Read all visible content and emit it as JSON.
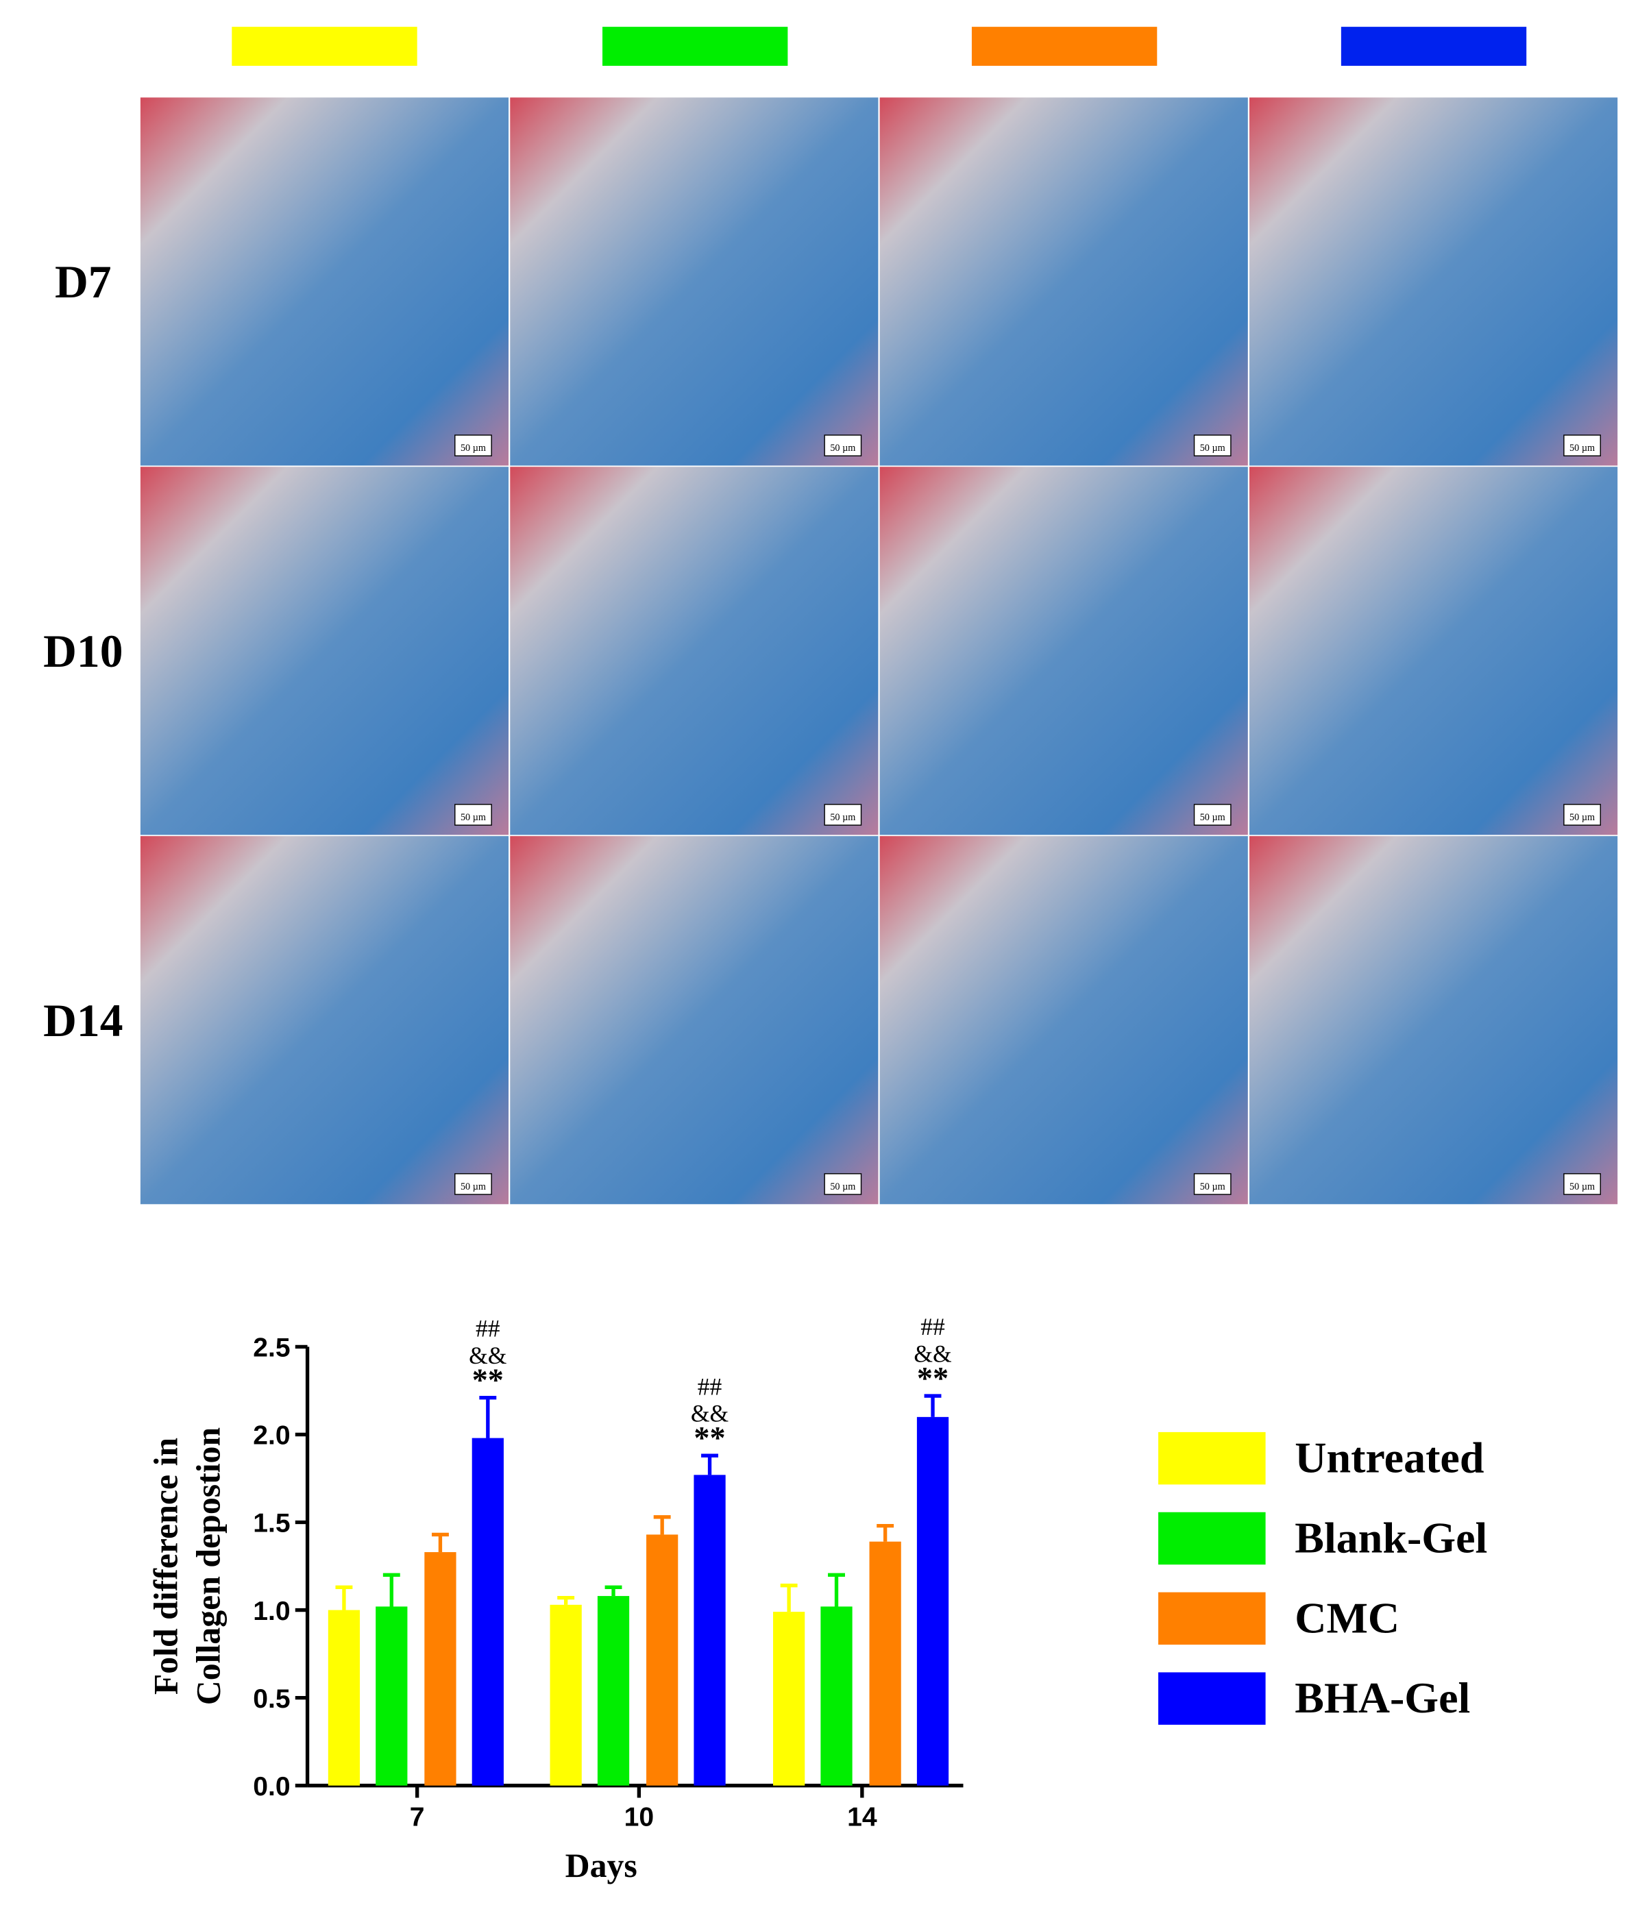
{
  "panels": {
    "group_colors": [
      "#ffff00",
      "#00ee00",
      "#ff8000",
      "#0022ee"
    ],
    "rows": [
      "D7",
      "D10",
      "D14"
    ],
    "scale_label": "50 µm"
  },
  "chart_data": {
    "type": "bar",
    "y_label": [
      "Fold difference in",
      "Collagen depostion"
    ],
    "x_label": "Days",
    "categories": [
      "7",
      "10",
      "14"
    ],
    "series": [
      {
        "name": "Untreated",
        "color": "#ffff00",
        "values": [
          1.0,
          1.03,
          0.99
        ],
        "errors": [
          0.13,
          0.04,
          0.15
        ]
      },
      {
        "name": "Blank-Gel",
        "color": "#00ee00",
        "values": [
          1.02,
          1.08,
          1.02
        ],
        "errors": [
          0.18,
          0.05,
          0.18
        ]
      },
      {
        "name": "CMC",
        "color": "#ff8000",
        "values": [
          1.33,
          1.43,
          1.39
        ],
        "errors": [
          0.1,
          0.1,
          0.09
        ]
      },
      {
        "name": "BHA-Gel",
        "color": "#0000ff",
        "values": [
          1.98,
          1.77,
          2.1
        ],
        "errors": [
          0.23,
          0.11,
          0.12
        ],
        "annotations": [
          [
            "##",
            "&&",
            "**"
          ],
          [
            "##",
            "&&",
            "**"
          ],
          [
            "##",
            "&&",
            "**"
          ]
        ]
      }
    ],
    "ylim": [
      0,
      2.5
    ],
    "yticks": [
      {
        "value": 0,
        "label": "0.0"
      },
      0.5,
      {
        "value": 1,
        "label": "1.0"
      },
      1.5,
      {
        "value": 2,
        "label": "2.0"
      },
      2.5
    ]
  }
}
